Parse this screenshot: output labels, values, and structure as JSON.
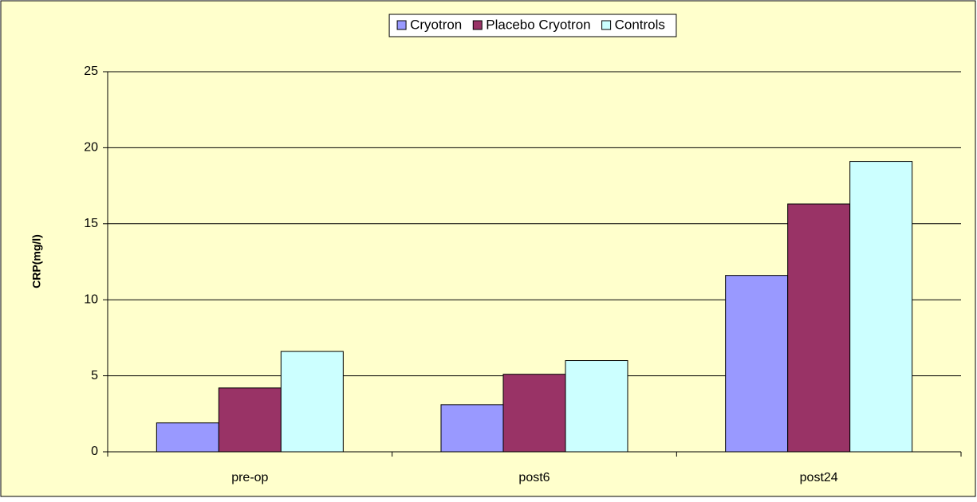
{
  "chart_data": {
    "type": "bar",
    "y_label": "CRP(mg/l)",
    "categories": [
      "pre-op",
      "post6",
      "post24"
    ],
    "series": [
      {
        "name": "Cryotron",
        "color": "#9999ff",
        "values": [
          1.9,
          3.1,
          11.6
        ]
      },
      {
        "name": "Placebo Cryotron",
        "color": "#993366",
        "values": [
          4.2,
          5.1,
          16.3
        ]
      },
      {
        "name": "Controls",
        "color": "#ccffff",
        "values": [
          6.6,
          6.0,
          19.1
        ]
      }
    ],
    "ylim": [
      0,
      25
    ],
    "yticks": [
      0,
      5,
      10,
      15,
      20,
      25
    ],
    "grid": true,
    "legend": "top"
  }
}
